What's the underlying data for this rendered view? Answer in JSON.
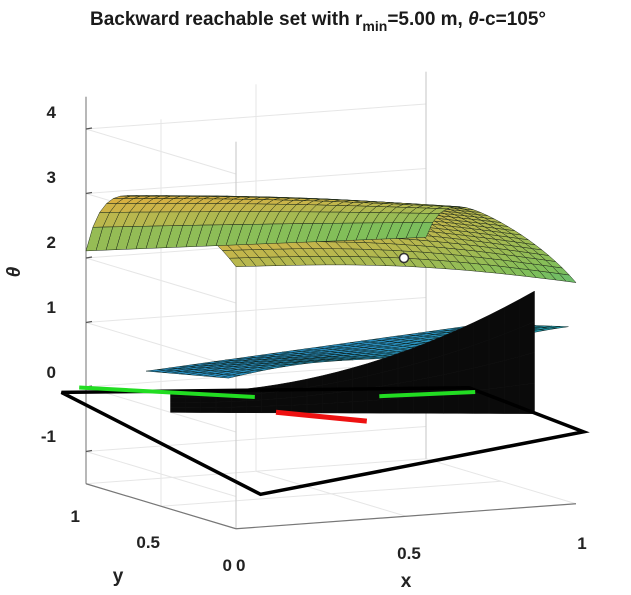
{
  "chart_data": {
    "type": "surface3d",
    "title": {
      "prefix": "Backward reachable set with r",
      "sub": "min",
      "mid": "=5.00 m, ",
      "symbol": "θ",
      "suffix": "-c=105°"
    },
    "xlabel": "x",
    "ylabel": "y",
    "zlabel": "θ",
    "x_ticks": [
      "0",
      "0.5",
      "1"
    ],
    "y_ticks": [
      "0",
      "0.5",
      "1"
    ],
    "z_ticks": [
      "-1",
      "0",
      "1",
      "2",
      "3",
      "4"
    ],
    "xlim": [
      0,
      1
    ],
    "ylim": [
      0,
      1
    ],
    "zlim": [
      -1.5,
      4.5
    ],
    "grid": true,
    "colormap": [
      "#2b8cbe",
      "#20b2aa",
      "#7fbf5a",
      "#c8b54a",
      "#f0a830"
    ],
    "marker": {
      "x": 0.55,
      "y": 0.0,
      "z": 1.75,
      "shape": "open-circle"
    },
    "lines": [
      {
        "name": "",
        "color": "#22dd22"
      },
      {
        "name": "",
        "color": "#ee1111"
      }
    ]
  }
}
